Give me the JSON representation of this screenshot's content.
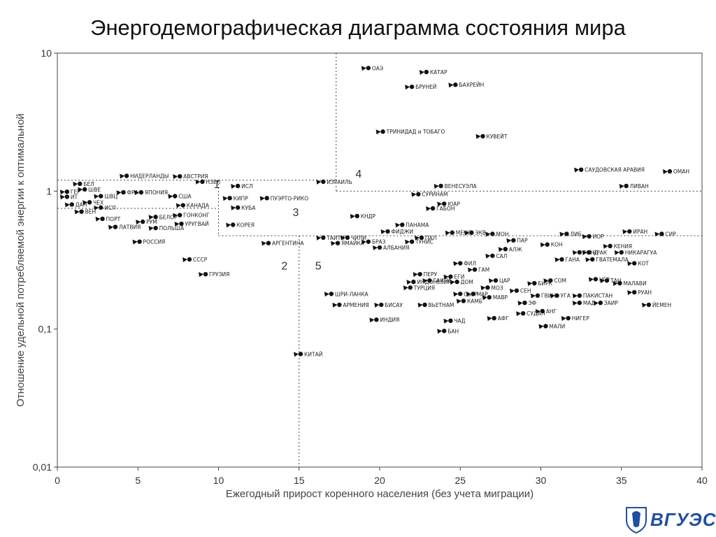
{
  "header": {
    "title": "Энергодемографическая диаграмма состояния мира"
  },
  "logo": {
    "text": "ВГУЭС"
  },
  "chart_data": {
    "type": "scatter",
    "title": "Энергодемографическая диаграмма состояния мира",
    "xlabel": "Ежегодный прирост коренного населения (без учета миграции)",
    "ylabel": "Отношение удельной потребляемой энергии к оптимальной",
    "xlim": [
      0,
      40
    ],
    "ylim": [
      0.01,
      10
    ],
    "yscale": "log",
    "x_ticks": [
      "0",
      "5",
      "10",
      "15",
      "20",
      "25",
      "30",
      "35",
      "40"
    ],
    "y_ticks": [
      "0,01",
      "0,1",
      "1",
      "10"
    ],
    "zones": [
      "1",
      "2",
      "3",
      "4",
      "5"
    ],
    "points": [
      {
        "name": "ГЕР",
        "x": 0.6,
        "y": 0.99
      },
      {
        "name": "ИТ",
        "x": 0.6,
        "y": 0.91
      },
      {
        "name": "ДАН",
        "x": 0.9,
        "y": 0.8
      },
      {
        "name": "ВЕН",
        "x": 1.5,
        "y": 0.71
      },
      {
        "name": "БЕЛ",
        "x": 1.4,
        "y": 1.13
      },
      {
        "name": "ШВЕ",
        "x": 1.7,
        "y": 1.03
      },
      {
        "name": "ЧЕХ",
        "x": 2.0,
        "y": 0.83
      },
      {
        "name": "ШВЦ",
        "x": 2.7,
        "y": 0.92
      },
      {
        "name": "ИСП",
        "x": 2.7,
        "y": 0.76
      },
      {
        "name": "ПОРТ",
        "x": 2.8,
        "y": 0.63
      },
      {
        "name": "ЛАТВИЯ",
        "x": 3.6,
        "y": 0.55
      },
      {
        "name": "НИДЕРЛАНДЫ",
        "x": 4.3,
        "y": 1.29
      },
      {
        "name": "ФРА",
        "x": 4.1,
        "y": 0.98
      },
      {
        "name": "ЯПОНИЯ",
        "x": 5.2,
        "y": 0.98
      },
      {
        "name": "АВСТРИЯ",
        "x": 7.6,
        "y": 1.28
      },
      {
        "name": "НЗЕЛ",
        "x": 9.0,
        "y": 1.17
      },
      {
        "name": "США",
        "x": 7.3,
        "y": 0.92
      },
      {
        "name": "КАНАДА",
        "x": 7.8,
        "y": 0.79
      },
      {
        "name": "ГОНКОНГ",
        "x": 7.6,
        "y": 0.67
      },
      {
        "name": "УРУГВАЙ",
        "x": 7.7,
        "y": 0.58
      },
      {
        "name": "БЕЛОР",
        "x": 6.1,
        "y": 0.65
      },
      {
        "name": "РУМ",
        "x": 5.3,
        "y": 0.6
      },
      {
        "name": "ПОЛЬША",
        "x": 6.1,
        "y": 0.54
      },
      {
        "name": "РОССИЯ",
        "x": 5.1,
        "y": 0.43
      },
      {
        "name": "СССР",
        "x": 8.2,
        "y": 0.32
      },
      {
        "name": "ГРУЗИЯ",
        "x": 9.2,
        "y": 0.25
      },
      {
        "name": "ИСЛ",
        "x": 11.2,
        "y": 1.09
      },
      {
        "name": "КИПР",
        "x": 10.7,
        "y": 0.89
      },
      {
        "name": "ПУЭРТО-РИКО",
        "x": 13.0,
        "y": 0.89
      },
      {
        "name": "КУБА",
        "x": 11.2,
        "y": 0.76
      },
      {
        "name": "КОРЕЯ",
        "x": 10.9,
        "y": 0.57
      },
      {
        "name": "АРГЕНТИНА",
        "x": 13.1,
        "y": 0.42
      },
      {
        "name": "ИЗРАИЛЬ",
        "x": 16.5,
        "y": 1.17
      },
      {
        "name": "КИТАЙ",
        "x": 15.1,
        "y": 0.066
      },
      {
        "name": "ОАЭ",
        "x": 19.3,
        "y": 7.8
      },
      {
        "name": "КАТАР",
        "x": 22.9,
        "y": 7.3
      },
      {
        "name": "БРУНЕЙ",
        "x": 22.0,
        "y": 5.7
      },
      {
        "name": "БАХРЕЙН",
        "x": 24.7,
        "y": 5.9
      },
      {
        "name": "ТРИНИДАД и ТОБАГО",
        "x": 20.2,
        "y": 2.7
      },
      {
        "name": "КУВЕЙТ",
        "x": 26.4,
        "y": 2.5
      },
      {
        "name": "САУДОВСКАЯ АРАВИЯ",
        "x": 32.5,
        "y": 1.43
      },
      {
        "name": "ОМАН",
        "x": 38.0,
        "y": 1.39
      },
      {
        "name": "ЛИВАН",
        "x": 35.3,
        "y": 1.09
      },
      {
        "name": "ВЕНЕСУЭЛА",
        "x": 23.8,
        "y": 1.09
      },
      {
        "name": "СУРИНАМ",
        "x": 22.4,
        "y": 0.95
      },
      {
        "name": "ЮАР",
        "x": 24.0,
        "y": 0.81
      },
      {
        "name": "ГАБОН",
        "x": 23.3,
        "y": 0.75
      },
      {
        "name": "КНДР",
        "x": 18.6,
        "y": 0.66
      },
      {
        "name": "ПАНАМА",
        "x": 21.4,
        "y": 0.57
      },
      {
        "name": "ФИДЖИ",
        "x": 20.5,
        "y": 0.51
      },
      {
        "name": "ТАИТИ",
        "x": 16.5,
        "y": 0.46
      },
      {
        "name": "ЧИЛИ",
        "x": 18.0,
        "y": 0.46
      },
      {
        "name": "БРАЗ",
        "x": 19.3,
        "y": 0.43
      },
      {
        "name": "ЯМАЙКА",
        "x": 17.4,
        "y": 0.42
      },
      {
        "name": "АЛБАНИЯ",
        "x": 20.0,
        "y": 0.39
      },
      {
        "name": "ПАЛ",
        "x": 22.6,
        "y": 0.46
      },
      {
        "name": "ТУНИС",
        "x": 22.0,
        "y": 0.43
      },
      {
        "name": "МЕКС",
        "x": 24.5,
        "y": 0.5
      },
      {
        "name": "ЭКВ",
        "x": 25.7,
        "y": 0.5
      },
      {
        "name": "МОН",
        "x": 27.0,
        "y": 0.49
      },
      {
        "name": "ЛИБ",
        "x": 31.6,
        "y": 0.49
      },
      {
        "name": "ИОР",
        "x": 33.0,
        "y": 0.47
      },
      {
        "name": "ИРАН",
        "x": 35.5,
        "y": 0.51
      },
      {
        "name": "СИР",
        "x": 37.5,
        "y": 0.49
      },
      {
        "name": "ПАР",
        "x": 28.3,
        "y": 0.44
      },
      {
        "name": "АЛЖ",
        "x": 27.8,
        "y": 0.38
      },
      {
        "name": "САЛ",
        "x": 27.0,
        "y": 0.34
      },
      {
        "name": "ФИЛ",
        "x": 25.0,
        "y": 0.3
      },
      {
        "name": "ГАМ",
        "x": 25.9,
        "y": 0.27
      },
      {
        "name": "ПЕРУ",
        "x": 22.5,
        "y": 0.25
      },
      {
        "name": "ГАИТИ",
        "x": 23.1,
        "y": 0.225
      },
      {
        "name": "ЕГИ",
        "x": 24.4,
        "y": 0.24
      },
      {
        "name": "ДОМ",
        "x": 24.8,
        "y": 0.22
      },
      {
        "name": "ЦАР",
        "x": 27.2,
        "y": 0.225
      },
      {
        "name": "ИНДОНЕЗИЯ",
        "x": 22.1,
        "y": 0.22
      },
      {
        "name": "ТУРЦИЯ",
        "x": 21.9,
        "y": 0.2
      },
      {
        "name": "ШРИ-ЛАНКА",
        "x": 17.0,
        "y": 0.18
      },
      {
        "name": "МОЗ",
        "x": 26.7,
        "y": 0.2
      },
      {
        "name": "МАР",
        "x": 25.8,
        "y": 0.18
      },
      {
        "name": "СЕН",
        "x": 28.5,
        "y": 0.19
      },
      {
        "name": "МАВР",
        "x": 26.8,
        "y": 0.17
      },
      {
        "name": "СЬЕР",
        "x": 25.0,
        "y": 0.18
      },
      {
        "name": "КАМБ",
        "x": 25.2,
        "y": 0.16
      },
      {
        "name": "ГВИН",
        "x": 29.8,
        "y": 0.175
      },
      {
        "name": "ЭФ",
        "x": 29.0,
        "y": 0.155
      },
      {
        "name": "АНГ",
        "x": 30.1,
        "y": 0.135
      },
      {
        "name": "БИРК",
        "x": 29.6,
        "y": 0.215
      },
      {
        "name": "ИРАК",
        "x": 33.0,
        "y": 0.36
      },
      {
        "name": "НИКАРАГУА",
        "x": 35.0,
        "y": 0.36
      },
      {
        "name": "КЕНИЯ",
        "x": 34.3,
        "y": 0.4
      },
      {
        "name": "КОН",
        "x": 30.4,
        "y": 0.41
      },
      {
        "name": "ГОНД",
        "x": 32.4,
        "y": 0.36
      },
      {
        "name": "ГАНА",
        "x": 31.3,
        "y": 0.32
      },
      {
        "name": "ГВАТЕМАЛА",
        "x": 33.2,
        "y": 0.32
      },
      {
        "name": "КОТ",
        "x": 35.8,
        "y": 0.3
      },
      {
        "name": "НГР",
        "x": 33.4,
        "y": 0.23
      },
      {
        "name": "ТАН",
        "x": 34.1,
        "y": 0.225
      },
      {
        "name": "МАЛАВИ",
        "x": 34.9,
        "y": 0.215
      },
      {
        "name": "СОМ",
        "x": 30.6,
        "y": 0.225
      },
      {
        "name": "УГА",
        "x": 31.0,
        "y": 0.175
      },
      {
        "name": "ПАКИСТАН",
        "x": 32.4,
        "y": 0.175
      },
      {
        "name": "РУАН",
        "x": 35.8,
        "y": 0.185
      },
      {
        "name": "МАД",
        "x": 32.4,
        "y": 0.155
      },
      {
        "name": "ЗАИР",
        "x": 33.7,
        "y": 0.155
      },
      {
        "name": "ЙЕМЕН",
        "x": 36.7,
        "y": 0.15
      },
      {
        "name": "СУДАН",
        "x": 28.9,
        "y": 0.13
      },
      {
        "name": "НИГЕР",
        "x": 31.7,
        "y": 0.12
      },
      {
        "name": "МАЛИ",
        "x": 30.3,
        "y": 0.105
      },
      {
        "name": "АФГ",
        "x": 27.1,
        "y": 0.12
      },
      {
        "name": "ЧАД",
        "x": 24.4,
        "y": 0.115
      },
      {
        "name": "БАН",
        "x": 24.0,
        "y": 0.097
      },
      {
        "name": "АРМЕНИЯ",
        "x": 17.5,
        "y": 0.15
      },
      {
        "name": "БИСАУ",
        "x": 20.1,
        "y": 0.15
      },
      {
        "name": "ВЬЕТНАМ",
        "x": 22.8,
        "y": 0.15
      },
      {
        "name": "ИНДИЯ",
        "x": 19.8,
        "y": 0.117
      }
    ]
  }
}
